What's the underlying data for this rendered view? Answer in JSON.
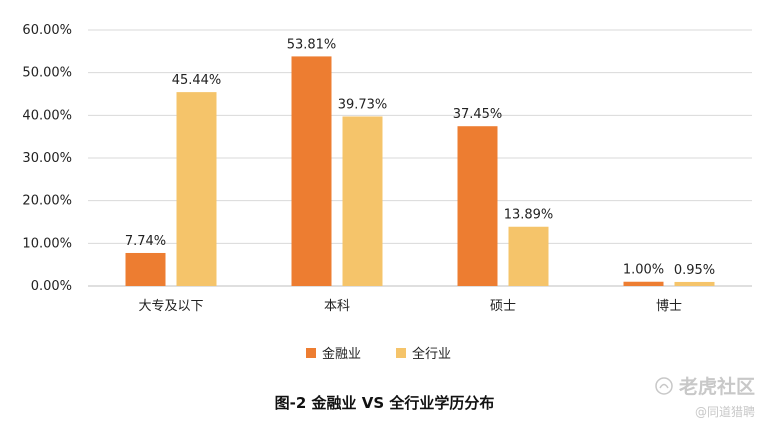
{
  "chart_data": {
    "type": "bar",
    "categories": [
      "大专及以下",
      "本科",
      "硕士",
      "博士"
    ],
    "series": [
      {
        "name": "金融业",
        "values": [
          7.74,
          53.81,
          37.45,
          1.0
        ],
        "labels": [
          "7.74%",
          "53.81%",
          "37.45%",
          "1.00%"
        ],
        "color": "#ED7D31"
      },
      {
        "name": "全行业",
        "values": [
          45.44,
          39.73,
          13.89,
          0.95
        ],
        "labels": [
          "45.44%",
          "39.73%",
          "13.89%",
          "0.95%"
        ],
        "color": "#F5C46A"
      }
    ],
    "ylim": [
      0,
      60
    ],
    "yticks": [
      "0.00%",
      "10.00%",
      "20.00%",
      "30.00%",
      "40.00%",
      "50.00%",
      "60.00%"
    ],
    "grid": true,
    "legend_position": "bottom",
    "title": "图-2 金融业 VS 全行业学历分布"
  },
  "watermark": {
    "title": "老虎社区",
    "subtitle": "@同道猎聘",
    "icon": "tiger-paw-icon"
  }
}
